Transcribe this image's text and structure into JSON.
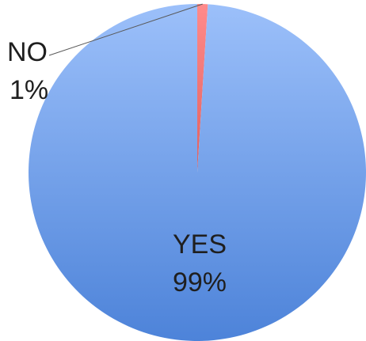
{
  "chart_data": {
    "type": "pie",
    "title": "",
    "slices": [
      {
        "label": "NO",
        "value": 1,
        "pct_label": "1%",
        "color": "#ff8b8b"
      },
      {
        "label": "YES",
        "value": 99,
        "pct_label": "99%",
        "color": "#5d8fdf"
      }
    ],
    "legend": "none",
    "colors": {
      "yes_light": "#9cc0fa",
      "yes_dark": "#4d83d9",
      "no": "#ff8b8b",
      "no_dark": "#e06060"
    }
  }
}
